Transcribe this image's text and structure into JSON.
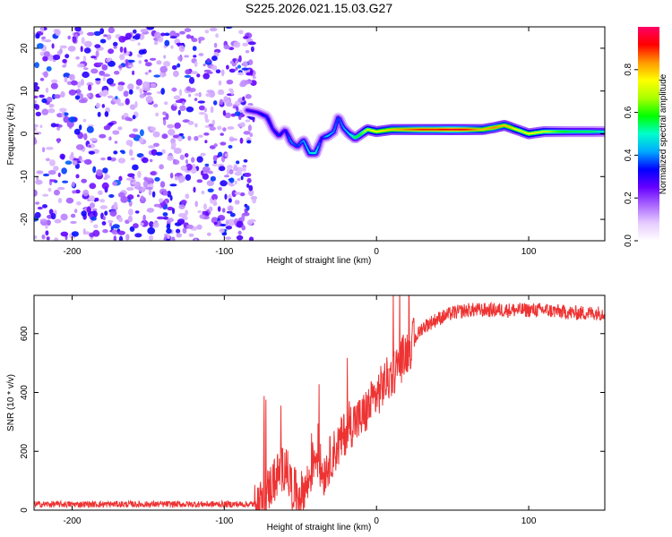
{
  "title": "S225.2026.021.15.03.G27",
  "colorbar": {
    "label": "Normalized spectral amplitude",
    "ticks": [
      {
        "value": 0.0,
        "label": "0.0"
      },
      {
        "value": 0.2,
        "label": "0.2"
      },
      {
        "value": 0.4,
        "label": "0.4"
      },
      {
        "value": 0.6,
        "label": "0.6"
      },
      {
        "value": 0.8,
        "label": "0.8"
      }
    ],
    "range": [
      0,
      1
    ],
    "colors": [
      "#ffffff",
      "#e6ccff",
      "#aa66ff",
      "#6600ff",
      "#0000ff",
      "#00aaff",
      "#00ffcc",
      "#00ff00",
      "#aaff00",
      "#ffff00",
      "#ff9900",
      "#ff0000",
      "#ff0066"
    ]
  },
  "chart_data": [
    {
      "type": "heatmap",
      "title": "S225.2026.021.15.03.G27",
      "xlabel": "Height of straight line (km)",
      "ylabel": "Frequency (Hz)",
      "xlim": [
        -225,
        150
      ],
      "ylim": [
        -25,
        25
      ],
      "xticks": [
        {
          "value": -200,
          "label": "-200"
        },
        {
          "value": -100,
          "label": "-100"
        },
        {
          "value": 0,
          "label": "0"
        },
        {
          "value": 100,
          "label": "100"
        }
      ],
      "yticks": [
        {
          "value": -20,
          "label": "-20"
        },
        {
          "value": -10,
          "label": "-10"
        },
        {
          "value": 0,
          "label": "0"
        },
        {
          "value": 10,
          "label": "10"
        },
        {
          "value": 20,
          "label": "20"
        }
      ],
      "noise_region_x": [
        -225,
        -80
      ],
      "ridge": {
        "x": [
          -85,
          -78,
          -72,
          -68,
          -64,
          -60,
          -56,
          -52,
          -48,
          -44,
          -40,
          -36,
          -32,
          -28,
          -25,
          -22,
          -18,
          -14,
          -10,
          -6,
          0,
          10,
          20,
          30,
          40,
          50,
          60,
          70,
          78,
          84,
          88,
          92,
          96,
          100,
          110,
          120,
          130,
          140,
          150
        ],
        "freq": [
          5.5,
          5.0,
          4.0,
          1.0,
          -0.5,
          1.0,
          -2.0,
          -3.0,
          -1.5,
          -4.5,
          -4.5,
          -1.0,
          -0.5,
          0.5,
          4.0,
          1.5,
          0.0,
          -1.0,
          0.0,
          1.0,
          0.5,
          1.0,
          1.0,
          1.0,
          1.0,
          1.0,
          1.0,
          1.0,
          1.5,
          2.0,
          1.5,
          1.0,
          0.5,
          0.0,
          0.5,
          0.5,
          0.5,
          0.5,
          0.5
        ],
        "amp": [
          0.3,
          0.3,
          0.35,
          0.3,
          0.35,
          0.3,
          0.4,
          0.35,
          0.4,
          0.45,
          0.5,
          0.3,
          0.45,
          0.4,
          0.35,
          0.4,
          0.45,
          0.55,
          0.6,
          0.7,
          0.75,
          0.8,
          0.85,
          0.9,
          0.9,
          0.95,
          0.9,
          0.8,
          0.85,
          0.8,
          0.8,
          0.75,
          0.7,
          0.75,
          0.7,
          0.6,
          0.55,
          0.55,
          0.5
        ]
      }
    },
    {
      "type": "line",
      "xlabel": "Height of straight line (km)",
      "ylabel": "SNR (10 * v/v)",
      "xlim": [
        -225,
        150
      ],
      "ylim": [
        0,
        730
      ],
      "xticks": [
        {
          "value": -200,
          "label": "-200"
        },
        {
          "value": -100,
          "label": "-100"
        },
        {
          "value": 0,
          "label": "0"
        },
        {
          "value": 100,
          "label": "100"
        }
      ],
      "yticks": [
        {
          "value": 0,
          "label": "0"
        },
        {
          "value": 200,
          "label": "200"
        },
        {
          "value": 400,
          "label": "400"
        },
        {
          "value": 600,
          "label": "600"
        }
      ],
      "series": [
        {
          "name": "SNR",
          "color": "#ee3333",
          "x": [
            -225,
            -200,
            -150,
            -100,
            -80,
            -75,
            -70,
            -65,
            -60,
            -55,
            -50,
            -45,
            -40,
            -35,
            -30,
            -25,
            -20,
            -15,
            -10,
            -5,
            0,
            5,
            10,
            15,
            20,
            25,
            30,
            40,
            50,
            60,
            70,
            80,
            90,
            100,
            110,
            120,
            130,
            140,
            150
          ],
          "y": [
            20,
            20,
            20,
            20,
            20,
            30,
            80,
            120,
            150,
            70,
            50,
            90,
            200,
            120,
            180,
            220,
            270,
            300,
            310,
            350,
            390,
            430,
            460,
            500,
            540,
            580,
            620,
            650,
            670,
            680,
            680,
            680,
            680,
            680,
            680,
            675,
            670,
            670,
            670
          ]
        }
      ]
    }
  ]
}
